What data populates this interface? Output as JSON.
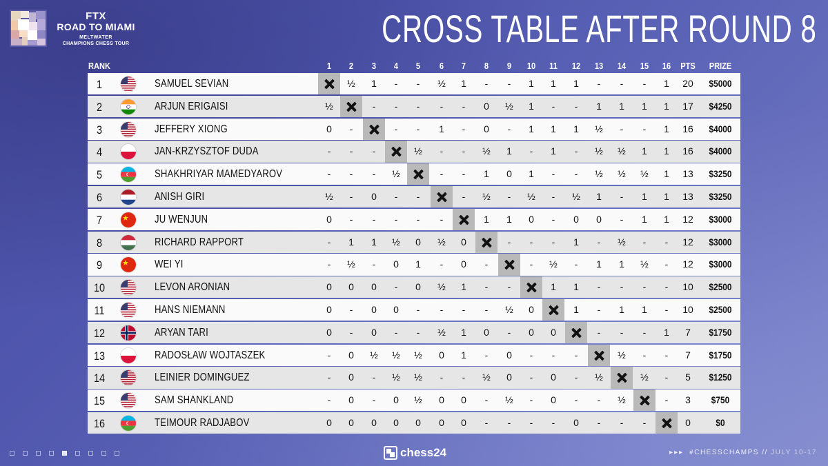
{
  "event": {
    "brand": "FTX",
    "title": "ROAD TO MIAMI",
    "subtitle1": "MELTWATER",
    "subtitle2": "CHAMPIONS CHESS TOUR"
  },
  "page_title": "CROSS TABLE AFTER ROUND 8",
  "header": {
    "rank": "RANK",
    "rounds": [
      "1",
      "2",
      "3",
      "4",
      "5",
      "6",
      "7",
      "8",
      "9",
      "10",
      "11",
      "12",
      "13",
      "14",
      "15",
      "16"
    ],
    "pts": "PTS",
    "prize": "PRIZE"
  },
  "colors": {
    "row_light": "#fafafa",
    "row_dark": "#e6e6e6",
    "self_cell": "#b9b9b9"
  },
  "rows": [
    {
      "rank": "1",
      "flag": "us",
      "name": "SAMUEL SEVIAN",
      "results": [
        "X",
        "½",
        "1",
        "-",
        "-",
        "½",
        "1",
        "-",
        "-",
        "1",
        "1",
        "1",
        "-",
        "-",
        "-",
        "1"
      ],
      "pts": "20",
      "prize": "$5000"
    },
    {
      "rank": "2",
      "flag": "in",
      "name": "ARJUN ERIGAISI",
      "results": [
        "½",
        "X",
        "-",
        "-",
        "-",
        "-",
        "-",
        "0",
        "½",
        "1",
        "-",
        "-",
        "1",
        "1",
        "1",
        "1"
      ],
      "pts": "17",
      "prize": "$4250"
    },
    {
      "rank": "3",
      "flag": "us",
      "name": "JEFFERY XIONG",
      "results": [
        "0",
        "-",
        "X",
        "-",
        "-",
        "1",
        "-",
        "0",
        "-",
        "1",
        "1",
        "1",
        "½",
        "-",
        "-",
        "1"
      ],
      "pts": "16",
      "prize": "$4000"
    },
    {
      "rank": "4",
      "flag": "pl",
      "name": "JAN-KRZYSZTOF DUDA",
      "results": [
        "-",
        "-",
        "-",
        "X",
        "½",
        "-",
        "-",
        "½",
        "1",
        "-",
        "1",
        "-",
        "½",
        "½",
        "1",
        "1"
      ],
      "pts": "16",
      "prize": "$4000"
    },
    {
      "rank": "5",
      "flag": "az",
      "name": "SHAKHRIYAR MAMEDYAROV",
      "results": [
        "-",
        "-",
        "-",
        "½",
        "X",
        "-",
        "-",
        "1",
        "0",
        "1",
        "-",
        "-",
        "½",
        "½",
        "½",
        "1"
      ],
      "pts": "13",
      "prize": "$3250"
    },
    {
      "rank": "6",
      "flag": "nl",
      "name": "ANISH GIRI",
      "results": [
        "½",
        "-",
        "0",
        "-",
        "-",
        "X",
        "-",
        "½",
        "-",
        "½",
        "-",
        "½",
        "1",
        "-",
        "1",
        "1"
      ],
      "pts": "13",
      "prize": "$3250"
    },
    {
      "rank": "7",
      "flag": "cn",
      "name": "JU WENJUN",
      "results": [
        "0",
        "-",
        "-",
        "-",
        "-",
        "-",
        "X",
        "1",
        "1",
        "0",
        "-",
        "0",
        "0",
        "-",
        "1",
        "1"
      ],
      "pts": "12",
      "prize": "$3000"
    },
    {
      "rank": "8",
      "flag": "hu",
      "name": "RICHARD RAPPORT",
      "results": [
        "-",
        "1",
        "1",
        "½",
        "0",
        "½",
        "0",
        "X",
        "-",
        "-",
        "-",
        "1",
        "-",
        "½",
        "-",
        "-"
      ],
      "pts": "12",
      "prize": "$3000"
    },
    {
      "rank": "9",
      "flag": "cn",
      "name": "WEI YI",
      "results": [
        "-",
        "½",
        "-",
        "0",
        "1",
        "-",
        "0",
        "-",
        "X",
        "-",
        "½",
        "-",
        "1",
        "1",
        "½",
        "-"
      ],
      "pts": "12",
      "prize": "$3000"
    },
    {
      "rank": "10",
      "flag": "us",
      "name": "LEVON ARONIAN",
      "results": [
        "0",
        "0",
        "0",
        "-",
        "0",
        "½",
        "1",
        "-",
        "-",
        "X",
        "1",
        "1",
        "-",
        "-",
        "-",
        "-"
      ],
      "pts": "10",
      "prize": "$2500"
    },
    {
      "rank": "11",
      "flag": "us",
      "name": "HANS NIEMANN",
      "results": [
        "0",
        "-",
        "0",
        "0",
        "-",
        "-",
        "-",
        "-",
        "½",
        "0",
        "X",
        "1",
        "-",
        "1",
        "1",
        "-"
      ],
      "pts": "10",
      "prize": "$2500"
    },
    {
      "rank": "12",
      "flag": "no",
      "name": "ARYAN TARI",
      "results": [
        "0",
        "-",
        "0",
        "-",
        "-",
        "½",
        "1",
        "0",
        "-",
        "0",
        "0",
        "X",
        "-",
        "-",
        "-",
        "1"
      ],
      "pts": "7",
      "prize": "$1750"
    },
    {
      "rank": "13",
      "flag": "pl",
      "name": "RADOSŁAW WOJTASZEK",
      "results": [
        "-",
        "0",
        "½",
        "½",
        "½",
        "0",
        "1",
        "-",
        "0",
        "-",
        "-",
        "-",
        "X",
        "½",
        "-",
        "-"
      ],
      "pts": "7",
      "prize": "$1750"
    },
    {
      "rank": "14",
      "flag": "us",
      "name": "LEINIER DOMINGUEZ",
      "results": [
        "-",
        "0",
        "-",
        "½",
        "½",
        "-",
        "-",
        "½",
        "0",
        "-",
        "0",
        "-",
        "½",
        "X",
        "½",
        "-"
      ],
      "pts": "5",
      "prize": "$1250"
    },
    {
      "rank": "15",
      "flag": "us",
      "name": "SAM SHANKLAND",
      "results": [
        "-",
        "0",
        "-",
        "0",
        "½",
        "0",
        "0",
        "-",
        "½",
        "-",
        "0",
        "-",
        "-",
        "½",
        "X",
        "-"
      ],
      "pts": "3",
      "prize": "$750"
    },
    {
      "rank": "16",
      "flag": "az",
      "name": "TEIMOUR RADJABOV",
      "results": [
        "0",
        "0",
        "0",
        "0",
        "0",
        "0",
        "0",
        "-",
        "-",
        "-",
        "-",
        "0",
        "-",
        "-",
        "-",
        "X"
      ],
      "pts": "0",
      "prize": "$0"
    }
  ],
  "footer": {
    "brand": "chess24",
    "hashtag": "#CHESSCHAMPS",
    "separator": "//",
    "dates": "JULY 10-17",
    "active_dot": 5
  }
}
